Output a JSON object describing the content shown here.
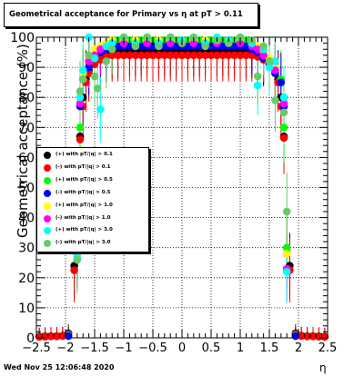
{
  "title": "Geometrical acceptance for Primary vs   η at pT > 0.11",
  "footer": {
    "timestamp": "Wed Nov 25 12:06:48 2020"
  },
  "chart_data": {
    "type": "scatter",
    "title": "Geometrical acceptance for Primary vs   η at pT > 0.11",
    "xlabel": "η",
    "ylabel": "Geometrical acceptance (%)",
    "xlim": [
      -2.5,
      2.5
    ],
    "ylim": [
      0,
      100
    ],
    "x_ticks": [
      "−2.5",
      "−2",
      "−1.5",
      "−1",
      "−0.5",
      "0",
      "0.5",
      "1",
      "1.5",
      "2",
      "2.5"
    ],
    "y_ticks": [
      "0",
      "10",
      "20",
      "30",
      "40",
      "50",
      "60",
      "70",
      "80",
      "90",
      "100"
    ],
    "grid": true,
    "legend_position": "left-middle",
    "series": [
      {
        "name": "(+) with pT/|q| > 0.1",
        "color": "#000000",
        "points": [
          [
            -2.45,
            0.4
          ],
          [
            -2.35,
            0.5
          ],
          [
            -2.25,
            0.6
          ],
          [
            -2.15,
            0.6
          ],
          [
            -2.05,
            0.7
          ],
          [
            -1.95,
            1.5
          ],
          [
            -1.85,
            24
          ],
          [
            -1.75,
            67
          ],
          [
            -1.7,
            80
          ],
          [
            -1.65,
            86
          ],
          [
            -1.6,
            89
          ],
          [
            -1.5,
            92
          ],
          [
            -1.4,
            93
          ],
          [
            -1.3,
            94
          ],
          [
            -1.2,
            95
          ],
          [
            -1.1,
            95
          ],
          [
            -1.0,
            95.5
          ],
          [
            -0.9,
            95.5
          ],
          [
            -0.8,
            95.5
          ],
          [
            -0.7,
            95.5
          ],
          [
            -0.6,
            95.5
          ],
          [
            -0.5,
            95.5
          ],
          [
            -0.4,
            95.5
          ],
          [
            -0.3,
            95.5
          ],
          [
            -0.2,
            95.5
          ],
          [
            -0.1,
            95.5
          ],
          [
            0.0,
            95.5
          ],
          [
            0.1,
            95.5
          ],
          [
            0.2,
            95.5
          ],
          [
            0.3,
            95.5
          ],
          [
            0.4,
            95.5
          ],
          [
            0.5,
            95.5
          ],
          [
            0.6,
            95.5
          ],
          [
            0.7,
            95.5
          ],
          [
            0.8,
            95.5
          ],
          [
            0.9,
            95.5
          ],
          [
            1.0,
            95.5
          ],
          [
            1.1,
            95
          ],
          [
            1.2,
            95
          ],
          [
            1.3,
            94
          ],
          [
            1.4,
            93
          ],
          [
            1.5,
            92
          ],
          [
            1.6,
            89
          ],
          [
            1.65,
            86
          ],
          [
            1.7,
            80
          ],
          [
            1.75,
            67
          ],
          [
            1.85,
            24
          ],
          [
            1.95,
            1.5
          ],
          [
            2.05,
            0.7
          ],
          [
            2.15,
            0.6
          ],
          [
            2.25,
            0.6
          ],
          [
            2.35,
            0.5
          ],
          [
            2.45,
            0.4
          ]
        ]
      },
      {
        "name": "(-) with pT/|q| > 0.1",
        "color": "#ff0000",
        "points": [
          [
            -2.45,
            0.3
          ],
          [
            -2.35,
            0.4
          ],
          [
            -2.25,
            0.5
          ],
          [
            -2.15,
            0.5
          ],
          [
            -2.05,
            0.6
          ],
          [
            -1.95,
            1.2
          ],
          [
            -1.85,
            22.5
          ],
          [
            -1.75,
            66
          ],
          [
            -1.7,
            77
          ],
          [
            -1.65,
            85
          ],
          [
            -1.6,
            88
          ],
          [
            -1.5,
            91
          ],
          [
            -1.4,
            92.5
          ],
          [
            -1.3,
            93.5
          ],
          [
            -1.2,
            94
          ],
          [
            -1.1,
            94
          ],
          [
            -1.0,
            94
          ],
          [
            -0.9,
            94
          ],
          [
            -0.8,
            94
          ],
          [
            -0.7,
            94
          ],
          [
            -0.6,
            94
          ],
          [
            -0.5,
            94
          ],
          [
            -0.4,
            94
          ],
          [
            -0.3,
            94
          ],
          [
            -0.2,
            94
          ],
          [
            -0.1,
            94
          ],
          [
            0.0,
            94
          ],
          [
            0.1,
            94
          ],
          [
            0.2,
            94
          ],
          [
            0.3,
            94
          ],
          [
            0.4,
            94
          ],
          [
            0.5,
            94
          ],
          [
            0.6,
            94
          ],
          [
            0.7,
            94
          ],
          [
            0.8,
            94
          ],
          [
            0.9,
            94
          ],
          [
            1.0,
            94
          ],
          [
            1.1,
            94
          ],
          [
            1.2,
            94
          ],
          [
            1.3,
            93.5
          ],
          [
            1.4,
            92.5
          ],
          [
            1.5,
            91
          ],
          [
            1.6,
            88
          ],
          [
            1.65,
            85
          ],
          [
            1.7,
            77
          ],
          [
            1.75,
            66.5
          ],
          [
            1.85,
            22.5
          ],
          [
            1.95,
            1.2
          ],
          [
            2.05,
            0.6
          ],
          [
            2.15,
            0.5
          ],
          [
            2.25,
            0.5
          ],
          [
            2.35,
            0.4
          ],
          [
            2.45,
            0.3
          ]
        ]
      },
      {
        "name": "(+) with pT/|q| > 0.5",
        "color": "#00ff00",
        "points": [
          [
            -1.95,
            0.8
          ],
          [
            -1.8,
            30
          ],
          [
            -1.75,
            70
          ],
          [
            -1.7,
            88
          ],
          [
            -1.6,
            92
          ],
          [
            -1.5,
            94
          ],
          [
            -1.4,
            97
          ],
          [
            -1.3,
            98
          ],
          [
            -1.2,
            99
          ],
          [
            -1.1,
            99
          ],
          [
            -1.0,
            99
          ],
          [
            -0.9,
            99
          ],
          [
            -0.8,
            99
          ],
          [
            -0.7,
            99
          ],
          [
            -0.6,
            99
          ],
          [
            -0.5,
            99
          ],
          [
            -0.4,
            99
          ],
          [
            -0.3,
            99
          ],
          [
            -0.2,
            99
          ],
          [
            -0.1,
            99
          ],
          [
            0.0,
            99
          ],
          [
            0.1,
            99
          ],
          [
            0.2,
            99
          ],
          [
            0.3,
            99
          ],
          [
            0.4,
            99
          ],
          [
            0.5,
            99
          ],
          [
            0.6,
            99
          ],
          [
            0.7,
            99
          ],
          [
            0.8,
            99
          ],
          [
            0.9,
            99
          ],
          [
            1.0,
            99
          ],
          [
            1.1,
            99
          ],
          [
            1.2,
            98
          ],
          [
            1.3,
            97
          ],
          [
            1.4,
            95
          ],
          [
            1.5,
            93
          ],
          [
            1.6,
            90
          ],
          [
            1.7,
            86
          ],
          [
            1.75,
            70
          ],
          [
            1.8,
            30
          ],
          [
            1.95,
            0.8
          ]
        ]
      },
      {
        "name": "(-) with pT/|q| > 0.5",
        "color": "#0000ff",
        "points": [
          [
            -1.95,
            0.6
          ],
          [
            -1.8,
            28
          ],
          [
            -1.75,
            77
          ],
          [
            -1.7,
            86
          ],
          [
            -1.6,
            90
          ],
          [
            -1.5,
            93
          ],
          [
            -1.4,
            95
          ],
          [
            -1.3,
            96
          ],
          [
            -1.2,
            97
          ],
          [
            -1.1,
            97
          ],
          [
            -1.0,
            97
          ],
          [
            -0.9,
            97
          ],
          [
            -0.8,
            97
          ],
          [
            -0.7,
            97
          ],
          [
            -0.6,
            97
          ],
          [
            -0.5,
            97
          ],
          [
            -0.4,
            97
          ],
          [
            -0.3,
            97
          ],
          [
            -0.2,
            97
          ],
          [
            -0.1,
            97
          ],
          [
            0.0,
            97
          ],
          [
            0.1,
            97
          ],
          [
            0.2,
            97
          ],
          [
            0.3,
            97
          ],
          [
            0.4,
            97
          ],
          [
            0.5,
            97
          ],
          [
            0.6,
            97
          ],
          [
            0.7,
            97
          ],
          [
            0.8,
            97
          ],
          [
            0.9,
            97
          ],
          [
            1.0,
            97
          ],
          [
            1.1,
            97
          ],
          [
            1.2,
            96
          ],
          [
            1.3,
            95
          ],
          [
            1.4,
            93
          ],
          [
            1.5,
            91
          ],
          [
            1.6,
            88
          ],
          [
            1.7,
            85
          ],
          [
            1.75,
            77
          ],
          [
            1.8,
            28
          ],
          [
            1.95,
            0.6
          ]
        ]
      },
      {
        "name": "(+) with pT/|q| > 1.0",
        "color": "#ffff00",
        "points": [
          [
            -1.8,
            28
          ],
          [
            -1.75,
            78
          ],
          [
            -1.7,
            88
          ],
          [
            -1.6,
            93
          ],
          [
            -1.5,
            96
          ],
          [
            -1.4,
            97
          ],
          [
            -1.3,
            98
          ],
          [
            -1.2,
            99
          ],
          [
            -1.0,
            99
          ],
          [
            -0.8,
            99
          ],
          [
            -0.6,
            99
          ],
          [
            -0.4,
            99
          ],
          [
            -0.2,
            99
          ],
          [
            0.0,
            99
          ],
          [
            0.2,
            99
          ],
          [
            0.4,
            99
          ],
          [
            0.6,
            99
          ],
          [
            0.8,
            99
          ],
          [
            1.0,
            99
          ],
          [
            1.2,
            98
          ],
          [
            1.3,
            97
          ],
          [
            1.4,
            95
          ],
          [
            1.5,
            93
          ],
          [
            1.6,
            90
          ],
          [
            1.75,
            78
          ],
          [
            1.8,
            28
          ]
        ]
      },
      {
        "name": "(-) with pT/|q| > 1.0",
        "color": "#ff00ff",
        "points": [
          [
            -1.8,
            29.5
          ],
          [
            -1.75,
            78
          ],
          [
            -1.7,
            86
          ],
          [
            -1.6,
            92
          ],
          [
            -1.5,
            94
          ],
          [
            -1.4,
            96
          ],
          [
            -1.3,
            97
          ],
          [
            -1.2,
            98
          ],
          [
            -1.0,
            98
          ],
          [
            -0.8,
            98
          ],
          [
            -0.6,
            98
          ],
          [
            -0.4,
            98
          ],
          [
            -0.2,
            98
          ],
          [
            0.0,
            98
          ],
          [
            0.2,
            98
          ],
          [
            0.4,
            98
          ],
          [
            0.6,
            98
          ],
          [
            0.8,
            98
          ],
          [
            1.0,
            98
          ],
          [
            1.2,
            97
          ],
          [
            1.3,
            96
          ],
          [
            1.4,
            94
          ],
          [
            1.5,
            92
          ],
          [
            1.6,
            89
          ],
          [
            1.75,
            78
          ],
          [
            1.8,
            23
          ]
        ]
      },
      {
        "name": "(+) with pT/|q| > 3.0",
        "color": "#00ffff",
        "points": [
          [
            -1.8,
            27
          ],
          [
            -1.75,
            80
          ],
          [
            -1.7,
            89
          ],
          [
            -1.6,
            100
          ],
          [
            -1.5,
            93
          ],
          [
            -1.4,
            76
          ],
          [
            -1.3,
            97
          ],
          [
            -1.2,
            98
          ],
          [
            -1.0,
            100
          ],
          [
            -0.8,
            98
          ],
          [
            -0.6,
            100
          ],
          [
            -0.4,
            98
          ],
          [
            -0.2,
            100
          ],
          [
            0.0,
            99
          ],
          [
            0.2,
            100
          ],
          [
            0.4,
            98
          ],
          [
            0.6,
            100
          ],
          [
            0.8,
            99
          ],
          [
            1.0,
            100
          ],
          [
            1.2,
            98
          ],
          [
            1.3,
            84
          ],
          [
            1.4,
            96
          ],
          [
            1.5,
            90
          ],
          [
            1.6,
            92
          ],
          [
            1.75,
            80
          ],
          [
            1.8,
            22
          ]
        ]
      },
      {
        "name": "(-) with pT/|q| > 3.0",
        "color": "#66cc66",
        "points": [
          [
            -1.8,
            26
          ],
          [
            -1.75,
            82
          ],
          [
            -1.7,
            86
          ],
          [
            -1.6,
            94
          ],
          [
            -1.5,
            87
          ],
          [
            -1.45,
            83
          ],
          [
            -1.3,
            92
          ],
          [
            -1.2,
            96
          ],
          [
            -1.0,
            100
          ],
          [
            -0.8,
            97
          ],
          [
            -0.6,
            100
          ],
          [
            -0.4,
            97
          ],
          [
            -0.2,
            100
          ],
          [
            0.0,
            98
          ],
          [
            0.2,
            100
          ],
          [
            0.4,
            97
          ],
          [
            0.6,
            99
          ],
          [
            0.8,
            98
          ],
          [
            1.0,
            100
          ],
          [
            1.2,
            99
          ],
          [
            1.3,
            87
          ],
          [
            1.4,
            97
          ],
          [
            1.5,
            92
          ],
          [
            1.6,
            79
          ],
          [
            1.75,
            75
          ],
          [
            1.8,
            42
          ]
        ]
      }
    ]
  }
}
